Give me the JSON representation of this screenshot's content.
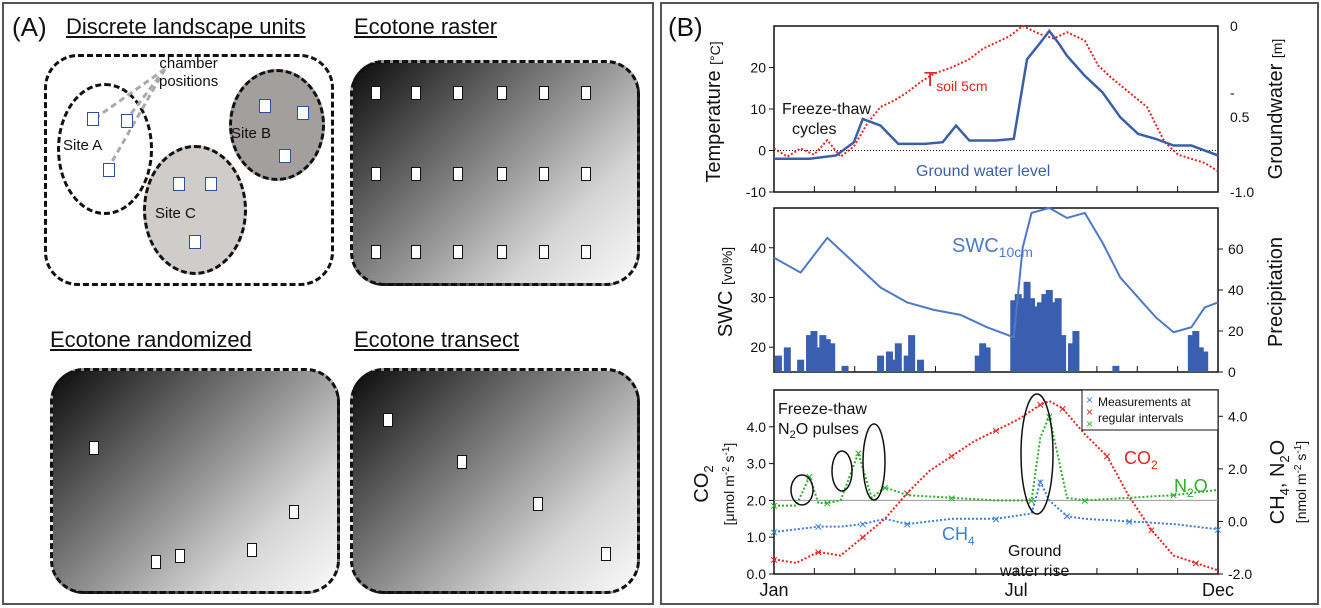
{
  "panel_a": {
    "label": "(A)",
    "titles": {
      "discrete": "Discrete landscape units",
      "raster": "Ecotone raster",
      "randomized": "Ecotone randomized",
      "transect": "Ecotone transect"
    },
    "chamber_label_line1": "chamber",
    "chamber_label_line2": "positions",
    "sites": [
      "Site A",
      "Site B",
      "Site C"
    ]
  },
  "panel_b": {
    "label": "(B)",
    "top": {
      "ylabel_left": "Temperature",
      "ylabel_left_unit": "[°C]",
      "ylabel_right": "Groundwater",
      "ylabel_right_unit": "[m]",
      "left_ticks": [
        "20",
        "10",
        "0",
        "-10"
      ],
      "right_ticks": [
        "0",
        "-",
        "0.5",
        "-1.0"
      ],
      "annotation_1": "Freeze-thaw",
      "annotation_2": "cycles",
      "soil_label": "T",
      "soil_sub": "soil 5cm",
      "gw_label": "Ground water level",
      "soil_color": "#e8231f",
      "gw_color": "#3a5fa8"
    },
    "mid": {
      "ylabel_left": "SWC",
      "ylabel_left_unit": "[vol%]",
      "ylabel_right": "Precipitation",
      "left_ticks": [
        "40",
        "30",
        "20"
      ],
      "right_ticks": [
        "60",
        "40",
        "20",
        "0"
      ],
      "swc_label": "SWC",
      "swc_sub": "10cm",
      "bar_color": "#3b5fb0",
      "line_color": "#4d79c8"
    },
    "bottom": {
      "ylabel_left_1": "CO",
      "ylabel_left_1_sub": "2",
      "ylabel_left_2": "[μmol m",
      "ylabel_left_2_sup": "-2",
      "ylabel_left_2_rest": " s",
      "ylabel_left_2_sup2": "-1",
      "ylabel_left_2_end": "]",
      "ylabel_right_1": "CH",
      "ylabel_right_1_sub": "4",
      "ylabel_right_1_mid": ", N",
      "ylabel_right_1_sub2": "2",
      "ylabel_right_1_end": "O",
      "ylabel_right_2": "[nmol m",
      "ylabel_right_2_sup": "-2",
      "ylabel_right_2_rest": " s",
      "ylabel_right_2_sup2": "-1",
      "ylabel_right_2_end": "]",
      "left_ticks": [
        "4.0",
        "3.0",
        "2.0",
        "1.0",
        "0.0"
      ],
      "right_ticks": [
        "4.0",
        "2.0",
        "0.0",
        "-2.0"
      ],
      "legend_line1": "Measurements at",
      "legend_line2": "regular intervals",
      "annot_ft_1": "Freeze-thaw",
      "annot_ft_2a": "N",
      "annot_ft_2sub": "2",
      "annot_ft_2b": "O pulses",
      "annot_gw_1": "Ground",
      "annot_gw_2": "water rise",
      "co2_label": "CO",
      "co2_sub": "2",
      "n2o_label": "N",
      "n2o_sub": "2",
      "n2o_end": "O",
      "ch4_label": "CH",
      "ch4_sub": "4",
      "co2_color": "#e8231f",
      "n2o_color": "#2ab02a",
      "ch4_color": "#3b7fd8"
    },
    "x_ticks": [
      "Jan",
      "Jul",
      "Dec"
    ]
  },
  "chart_data": [
    {
      "type": "line",
      "ylabel": "Temperature [°C]",
      "y2label": "Groundwater [m]",
      "ylim": [
        -10,
        30
      ],
      "y2lim": [
        -1.0,
        0
      ],
      "x_ticks": [
        "Jan",
        "Jul",
        "Dec"
      ],
      "series": [
        {
          "name": "Tsoil 5cm",
          "axis": "left",
          "x": [
            0,
            0.03,
            0.06,
            0.09,
            0.12,
            0.15,
            0.18,
            0.21,
            0.24,
            0.27,
            0.3,
            0.33,
            0.36,
            0.4,
            0.44,
            0.47,
            0.5,
            0.53,
            0.56,
            0.6,
            0.63,
            0.66,
            0.7,
            0.73,
            0.76,
            0.8,
            0.84,
            0.88,
            0.91,
            0.94,
            0.97,
            1.0
          ],
          "y": [
            0.5,
            -1.5,
            0.5,
            -1.0,
            2.5,
            -1.5,
            1.0,
            6.5,
            10.5,
            12.0,
            14.0,
            16.5,
            18.5,
            20.0,
            22.0,
            24.5,
            26.0,
            27.5,
            30.0,
            28.0,
            27.0,
            28.5,
            26.5,
            20.5,
            17.5,
            14.0,
            10.5,
            2.0,
            -1.0,
            -2.0,
            -3.0,
            -5.0
          ]
        },
        {
          "name": "Ground water level",
          "axis": "right",
          "x": [
            0,
            0.08,
            0.14,
            0.18,
            0.2,
            0.24,
            0.28,
            0.34,
            0.38,
            0.41,
            0.44,
            0.5,
            0.54,
            0.57,
            0.6,
            0.62,
            0.64,
            0.66,
            0.7,
            0.74,
            0.78,
            0.82,
            0.86,
            0.9,
            0.94,
            1.0
          ],
          "y": [
            -0.8,
            -0.8,
            -0.78,
            -0.7,
            -0.56,
            -0.6,
            -0.71,
            -0.71,
            -0.7,
            -0.6,
            -0.69,
            -0.69,
            -0.68,
            -0.2,
            -0.1,
            -0.03,
            -0.1,
            -0.18,
            -0.3,
            -0.4,
            -0.55,
            -0.65,
            -0.68,
            -0.72,
            -0.72,
            -0.78
          ]
        }
      ]
    },
    {
      "type": "bar",
      "ylabel": "SWC [vol%]",
      "y2label": "Precipitation",
      "ylim": [
        15,
        48
      ],
      "y2lim": [
        0,
        80
      ],
      "series": [
        {
          "name": "SWC10cm",
          "type": "line",
          "axis": "left",
          "x": [
            0,
            0.06,
            0.12,
            0.18,
            0.24,
            0.3,
            0.36,
            0.42,
            0.48,
            0.54,
            0.56,
            0.58,
            0.62,
            0.66,
            0.7,
            0.74,
            0.78,
            0.82,
            0.86,
            0.9,
            0.94,
            0.97,
            1.0
          ],
          "y": [
            38,
            35,
            42,
            37,
            32,
            29,
            27.5,
            26.5,
            24,
            22,
            40,
            47,
            48,
            46,
            47,
            41,
            34,
            30,
            26,
            23,
            24,
            28,
            29
          ]
        },
        {
          "name": "Precipitation",
          "type": "bar",
          "axis": "right",
          "x": [
            0.01,
            0.03,
            0.06,
            0.08,
            0.09,
            0.1,
            0.11,
            0.12,
            0.13,
            0.16,
            0.24,
            0.26,
            0.27,
            0.28,
            0.3,
            0.31,
            0.33,
            0.46,
            0.47,
            0.48,
            0.54,
            0.55,
            0.56,
            0.57,
            0.58,
            0.59,
            0.6,
            0.61,
            0.62,
            0.63,
            0.64,
            0.65,
            0.67,
            0.68,
            0.77,
            0.94,
            0.95,
            0.96,
            0.97
          ],
          "y": [
            8,
            12,
            6,
            18,
            20,
            12,
            18,
            16,
            14,
            3,
            8,
            10,
            6,
            14,
            8,
            18,
            6,
            8,
            14,
            12,
            35,
            38,
            36,
            44,
            36,
            32,
            34,
            38,
            40,
            34,
            36,
            18,
            14,
            20,
            3,
            18,
            20,
            12,
            10
          ]
        }
      ]
    },
    {
      "type": "line",
      "ylabel": "CO2 [μmol m-2 s-1]",
      "y2label": "CH4, N2O [nmol m-2 s-1]",
      "ylim": [
        0,
        5
      ],
      "y2lim": [
        -2.0,
        5
      ],
      "x_ticks": [
        "Jan",
        "Jul",
        "Dec"
      ],
      "legend": [
        "Measurements at regular intervals"
      ],
      "series": [
        {
          "name": "CO2",
          "axis": "left",
          "x": [
            0,
            0.05,
            0.1,
            0.15,
            0.2,
            0.25,
            0.3,
            0.35,
            0.4,
            0.45,
            0.5,
            0.55,
            0.6,
            0.62,
            0.65,
            0.7,
            0.75,
            0.8,
            0.85,
            0.9,
            0.95,
            1.0
          ],
          "y": [
            0.4,
            0.3,
            0.6,
            0.5,
            1.0,
            1.5,
            2.2,
            2.8,
            3.2,
            3.6,
            3.9,
            4.2,
            4.6,
            4.7,
            4.5,
            3.8,
            3.2,
            2.1,
            1.2,
            0.5,
            0.3,
            0.1
          ]
        },
        {
          "name": "N2O",
          "axis": "right",
          "x": [
            0,
            0.05,
            0.08,
            0.1,
            0.12,
            0.15,
            0.19,
            0.22,
            0.25,
            0.3,
            0.4,
            0.5,
            0.58,
            0.6,
            0.62,
            0.66,
            0.7,
            0.8,
            0.9,
            1.0
          ],
          "y": [
            0.6,
            0.6,
            1.7,
            0.7,
            0.7,
            0.8,
            2.6,
            0.9,
            1.3,
            1.0,
            0.9,
            0.8,
            0.8,
            3.2,
            4.0,
            0.9,
            0.8,
            0.9,
            1.0,
            1.2
          ]
        },
        {
          "name": "CH4",
          "axis": "right",
          "x": [
            0,
            0.05,
            0.1,
            0.15,
            0.2,
            0.25,
            0.3,
            0.4,
            0.5,
            0.58,
            0.6,
            0.62,
            0.66,
            0.7,
            0.8,
            0.9,
            1.0
          ],
          "y": [
            -0.4,
            -0.3,
            -0.2,
            -0.2,
            -0.1,
            0.1,
            -0.1,
            0.1,
            0.1,
            0.3,
            1.5,
            0.8,
            0.2,
            0.1,
            0.0,
            -0.1,
            -0.3
          ]
        }
      ]
    }
  ]
}
